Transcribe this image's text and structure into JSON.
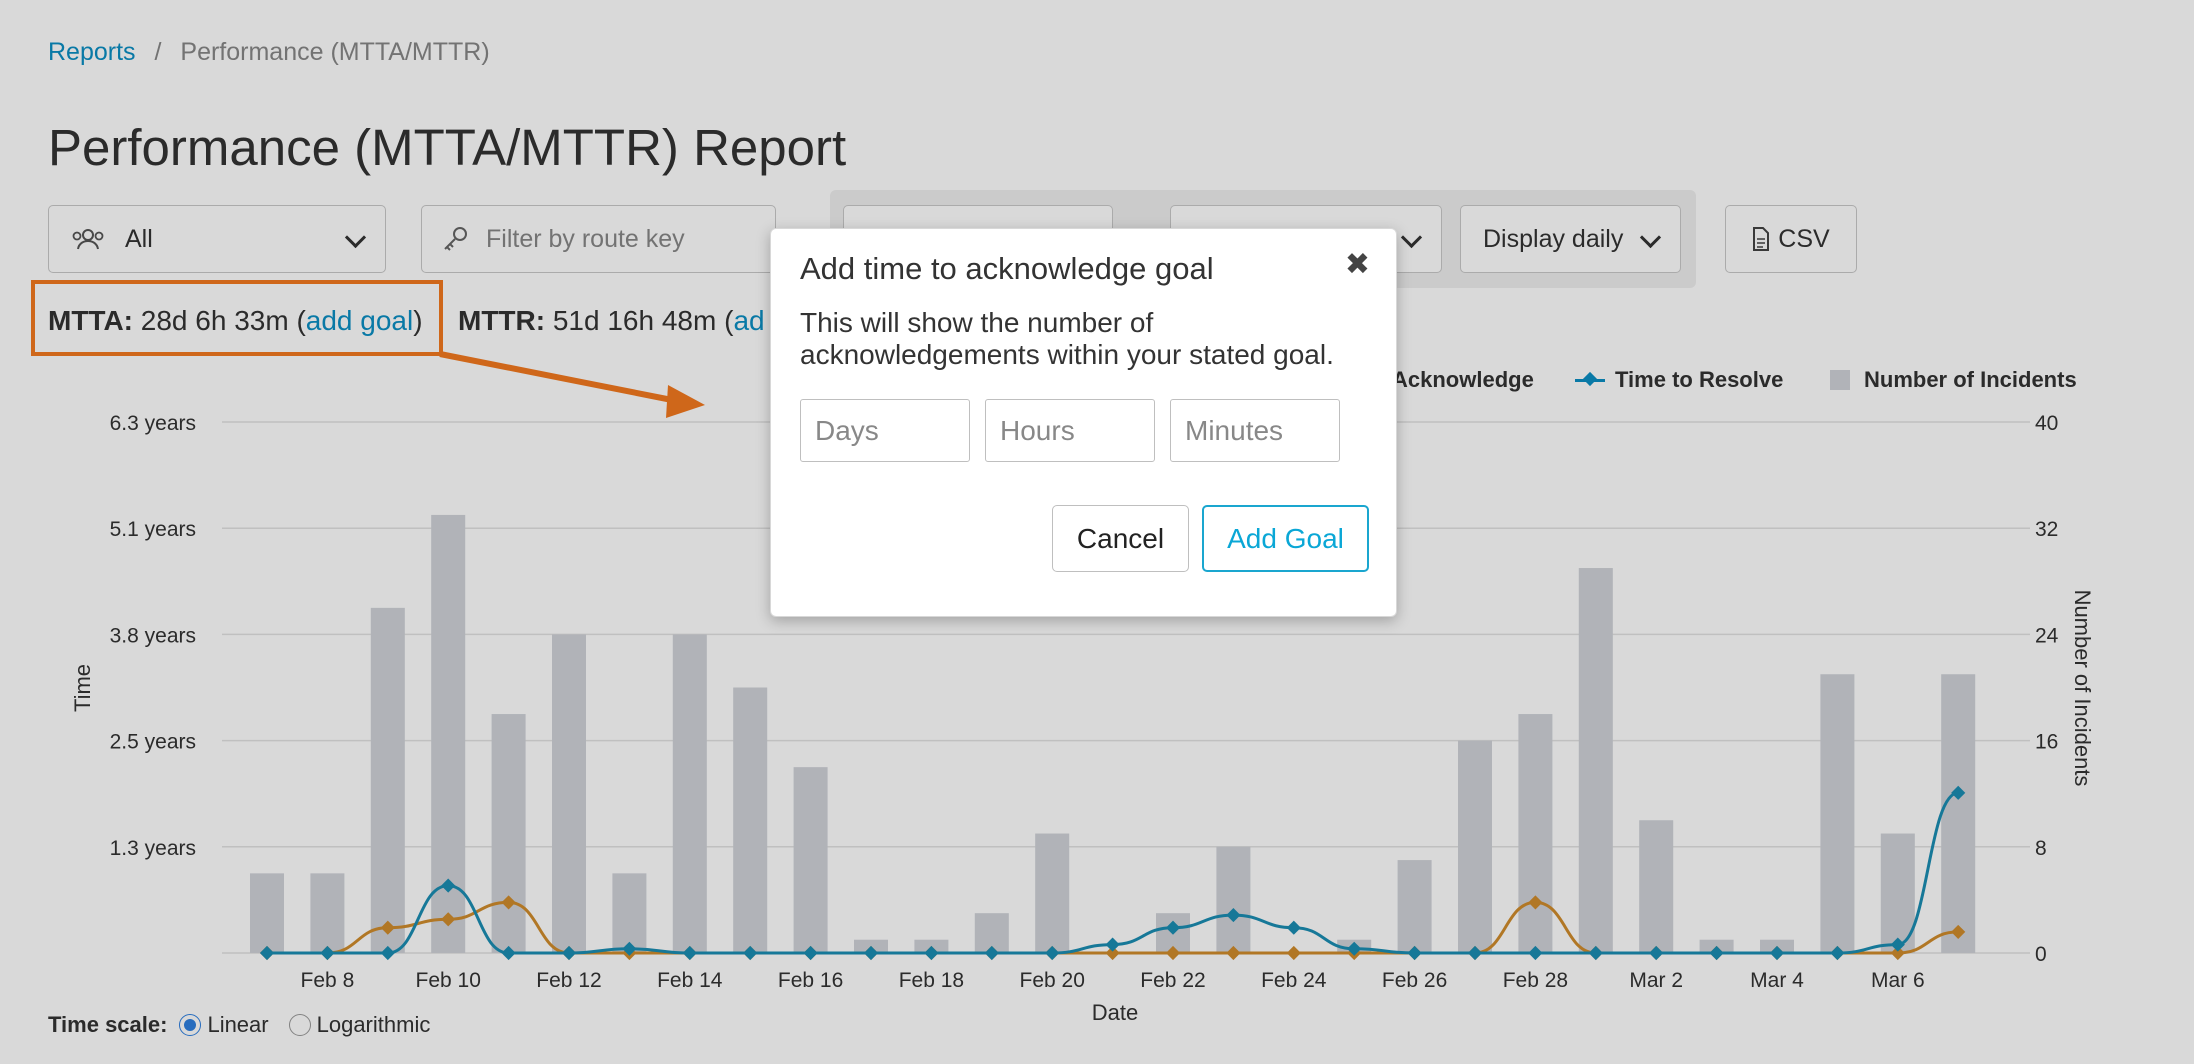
{
  "breadcrumb": {
    "parent": "Reports",
    "separator": "/",
    "current": "Performance (MTTA/MTTR)"
  },
  "page_title": "Performance (MTTA/MTTR) Report",
  "filters": {
    "team": "All",
    "route_key_placeholder": "Filter by route key",
    "display": "Display daily",
    "csv": "CSV"
  },
  "stats": {
    "mtta_label": "MTTA:",
    "mtta_value": "28d 6h 33m",
    "add_goal": "add goal",
    "mttr_label": "MTTR:",
    "mttr_value": "51d 16h 48m",
    "mttr_cut": "ad"
  },
  "legend": {
    "ack": "Acknowledge",
    "resolve": "Time to Resolve",
    "incidents": "Number of Incidents"
  },
  "modal": {
    "title": "Add time to acknowledge goal",
    "body": "This will show the number of acknowledgements within your stated goal.",
    "days_placeholder": "Days",
    "hours_placeholder": "Hours",
    "minutes_placeholder": "Minutes",
    "cancel": "Cancel",
    "add_goal": "Add Goal"
  },
  "time_scale": {
    "label": "Time scale:",
    "options": [
      "Linear",
      "Logarithmic"
    ],
    "selected": "Linear"
  },
  "colors": {
    "resolve": "#1b8db3",
    "acknowledge": "#d08c2c",
    "incidents": "#d0d3d9",
    "accent": "#0b8fc4",
    "highlight": "#f47a1f"
  },
  "chart_data": {
    "type": "bar",
    "xlabel": "Date",
    "ylabel": "Time",
    "y2label": "Number of Incidents",
    "y_ticks": [
      "6.3 years",
      "5.1 years",
      "3.8 years",
      "2.5 years",
      "1.3 years"
    ],
    "y2_ticks": [
      40,
      32,
      24,
      16,
      8,
      0
    ],
    "y2lim": [
      0,
      40
    ],
    "x_ticks": [
      "Feb 8",
      "Feb 10",
      "Feb 12",
      "Feb 14",
      "Feb 16",
      "Feb 18",
      "Feb 20",
      "Feb 22",
      "Feb 24",
      "Feb 26",
      "Feb 28",
      "Mar 2",
      "Mar 4",
      "Mar 6"
    ],
    "days": [
      "Feb 7",
      "Feb 8",
      "Feb 9",
      "Feb 10",
      "Feb 11",
      "Feb 12",
      "Feb 13",
      "Feb 14",
      "Feb 15",
      "Feb 16",
      "Feb 17",
      "Feb 18",
      "Feb 19",
      "Feb 20",
      "Feb 21",
      "Feb 22",
      "Feb 23",
      "Feb 24",
      "Feb 25",
      "Feb 26",
      "Feb 27",
      "Feb 28",
      "Mar 1",
      "Mar 2",
      "Mar 3",
      "Mar 4",
      "Mar 5",
      "Mar 6",
      "Mar 7"
    ],
    "series": [
      {
        "name": "Number of Incidents",
        "axis": "right",
        "values": [
          6,
          6,
          26,
          33,
          18,
          24,
          6,
          24,
          20,
          14,
          1,
          1,
          3,
          9,
          0,
          3,
          8,
          0,
          1,
          7,
          16,
          18,
          29,
          10,
          1,
          1,
          21,
          9,
          21
        ]
      },
      {
        "name": "Time to Resolve",
        "axis": "left",
        "unit": "years",
        "values": [
          0,
          0,
          0,
          0.8,
          0,
          0,
          0.05,
          0,
          0,
          0,
          0,
          0,
          0,
          0,
          0.1,
          0.3,
          0.45,
          0.3,
          0.05,
          0,
          0,
          0,
          0,
          0,
          0,
          0,
          0,
          0.1,
          1.9
        ]
      },
      {
        "name": "Acknowledge",
        "axis": "left",
        "unit": "years",
        "values": [
          0,
          0,
          0.3,
          0.4,
          0.6,
          0,
          0,
          0,
          0,
          0,
          0,
          0,
          0,
          0,
          0,
          0,
          0,
          0,
          0,
          0,
          0,
          0.6,
          0,
          0,
          0,
          0,
          0,
          0,
          0.25
        ]
      }
    ],
    "grid": true,
    "legend_position": "top-right"
  }
}
